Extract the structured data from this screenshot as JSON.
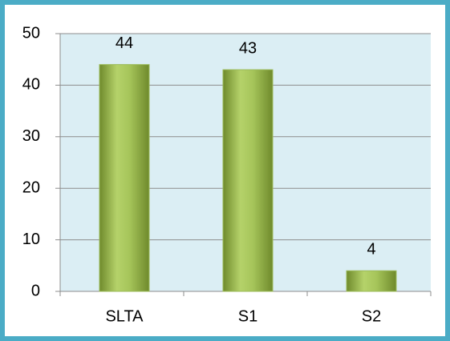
{
  "chart_data": {
    "type": "bar",
    "categories": [
      "SLTA",
      "S1",
      "S2"
    ],
    "values": [
      44,
      43,
      4
    ],
    "color": "#9bbb59",
    "ylim": [
      0,
      50
    ],
    "yticks": [
      0,
      10,
      20,
      30,
      40,
      50
    ],
    "grid": true
  }
}
